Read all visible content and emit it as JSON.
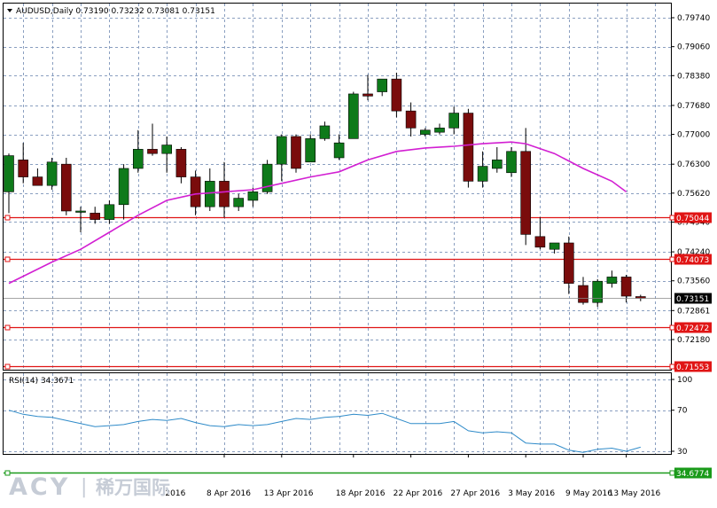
{
  "header": {
    "symbol": "AUDUSD,Daily",
    "ohlc": "0.73190 0.73232 0.73081 0.73151",
    "menu_icon": "triangle-down-icon"
  },
  "watermark": {
    "brand": "ACY",
    "separator": "|",
    "cn": "稀万国际",
    "color": "#c6ccd6"
  },
  "colors": {
    "bull_body": "#0e7a1a",
    "bear_body": "#7a0c0c",
    "ma_line": "#d21fd2",
    "rsi_line": "#2f8bc9",
    "resistance": "#e01515",
    "rsi_level": "#1a9a1a",
    "grid": "#8a9fc0"
  },
  "chart_data": [
    {
      "type": "candlestick",
      "title": "AUDUSD,Daily",
      "y_ticks": [
        "0.79740",
        "0.79060",
        "0.78380",
        "0.77680",
        "0.77000",
        "0.76300",
        "0.75620",
        "0.74940",
        "0.74240",
        "0.73560",
        "0.72861",
        "0.72180"
      ],
      "y_tick_values": [
        0.7974,
        0.7906,
        0.7838,
        0.7768,
        0.77,
        0.763,
        0.7562,
        0.7494,
        0.7424,
        0.7356,
        0.72861,
        0.7218
      ],
      "x_labels": [
        "8 Apr 2016",
        "13 Apr 2016",
        "18 Apr 2016",
        "22 Apr 2016",
        "27 Apr 2016",
        "3 May 2016",
        "9 May 2016",
        "13 May 2016"
      ],
      "x_label_bars": [
        15,
        19,
        24,
        28,
        32,
        36,
        40,
        43
      ],
      "x_label_cut": "2016",
      "x_label_cut_bar": 12,
      "candles": [
        {
          "o": 0.7565,
          "h": 0.7655,
          "l": 0.7515,
          "c": 0.765
        },
        {
          "o": 0.764,
          "h": 0.768,
          "l": 0.7585,
          "c": 0.76
        },
        {
          "o": 0.76,
          "h": 0.762,
          "l": 0.758,
          "c": 0.758
        },
        {
          "o": 0.758,
          "h": 0.7645,
          "l": 0.757,
          "c": 0.7635
        },
        {
          "o": 0.763,
          "h": 0.7645,
          "l": 0.751,
          "c": 0.752
        },
        {
          "o": 0.752,
          "h": 0.753,
          "l": 0.747,
          "c": 0.752
        },
        {
          "o": 0.7515,
          "h": 0.753,
          "l": 0.749,
          "c": 0.75
        },
        {
          "o": 0.75,
          "h": 0.7545,
          "l": 0.749,
          "c": 0.7535
        },
        {
          "o": 0.7535,
          "h": 0.763,
          "l": 0.75,
          "c": 0.762
        },
        {
          "o": 0.762,
          "h": 0.771,
          "l": 0.761,
          "c": 0.7665
        },
        {
          "o": 0.7665,
          "h": 0.7725,
          "l": 0.765,
          "c": 0.7655
        },
        {
          "o": 0.7655,
          "h": 0.7695,
          "l": 0.761,
          "c": 0.7675
        },
        {
          "o": 0.7665,
          "h": 0.767,
          "l": 0.7585,
          "c": 0.76
        },
        {
          "o": 0.76,
          "h": 0.7615,
          "l": 0.751,
          "c": 0.753
        },
        {
          "o": 0.753,
          "h": 0.762,
          "l": 0.752,
          "c": 0.759
        },
        {
          "o": 0.759,
          "h": 0.7635,
          "l": 0.7505,
          "c": 0.753
        },
        {
          "o": 0.753,
          "h": 0.756,
          "l": 0.752,
          "c": 0.755
        },
        {
          "o": 0.7545,
          "h": 0.7575,
          "l": 0.753,
          "c": 0.7565
        },
        {
          "o": 0.7565,
          "h": 0.764,
          "l": 0.756,
          "c": 0.763
        },
        {
          "o": 0.763,
          "h": 0.77,
          "l": 0.759,
          "c": 0.7695
        },
        {
          "o": 0.7695,
          "h": 0.77,
          "l": 0.761,
          "c": 0.762
        },
        {
          "o": 0.7635,
          "h": 0.77,
          "l": 0.7635,
          "c": 0.769
        },
        {
          "o": 0.769,
          "h": 0.773,
          "l": 0.7685,
          "c": 0.772
        },
        {
          "o": 0.7645,
          "h": 0.77,
          "l": 0.764,
          "c": 0.768
        },
        {
          "o": 0.769,
          "h": 0.78,
          "l": 0.769,
          "c": 0.7795
        },
        {
          "o": 0.7795,
          "h": 0.784,
          "l": 0.778,
          "c": 0.779
        },
        {
          "o": 0.78,
          "h": 0.783,
          "l": 0.779,
          "c": 0.783
        },
        {
          "o": 0.783,
          "h": 0.7845,
          "l": 0.774,
          "c": 0.7755
        },
        {
          "o": 0.7755,
          "h": 0.7775,
          "l": 0.7695,
          "c": 0.7715
        },
        {
          "o": 0.77,
          "h": 0.7715,
          "l": 0.7695,
          "c": 0.771
        },
        {
          "o": 0.7705,
          "h": 0.7725,
          "l": 0.77,
          "c": 0.7715
        },
        {
          "o": 0.7715,
          "h": 0.7765,
          "l": 0.77,
          "c": 0.775
        },
        {
          "o": 0.775,
          "h": 0.776,
          "l": 0.7575,
          "c": 0.759
        },
        {
          "o": 0.759,
          "h": 0.766,
          "l": 0.7575,
          "c": 0.7625
        },
        {
          "o": 0.762,
          "h": 0.767,
          "l": 0.761,
          "c": 0.764
        },
        {
          "o": 0.761,
          "h": 0.767,
          "l": 0.76,
          "c": 0.766
        },
        {
          "o": 0.766,
          "h": 0.7715,
          "l": 0.744,
          "c": 0.7465
        },
        {
          "o": 0.746,
          "h": 0.7505,
          "l": 0.743,
          "c": 0.7435
        },
        {
          "o": 0.743,
          "h": 0.7445,
          "l": 0.742,
          "c": 0.7445
        },
        {
          "o": 0.7445,
          "h": 0.746,
          "l": 0.7325,
          "c": 0.735
        },
        {
          "o": 0.7345,
          "h": 0.7365,
          "l": 0.73,
          "c": 0.7305
        },
        {
          "o": 0.7305,
          "h": 0.736,
          "l": 0.7295,
          "c": 0.7355
        },
        {
          "o": 0.735,
          "h": 0.738,
          "l": 0.734,
          "c": 0.7365
        },
        {
          "o": 0.7365,
          "h": 0.737,
          "l": 0.7305,
          "c": 0.732
        },
        {
          "o": 0.7319,
          "h": 0.73232,
          "l": 0.73081,
          "c": 0.73151
        }
      ],
      "moving_average": [
        {
          "i": 0,
          "v": 0.735
        },
        {
          "i": 3,
          "v": 0.74
        },
        {
          "i": 5,
          "v": 0.743
        },
        {
          "i": 7,
          "v": 0.747
        },
        {
          "i": 9,
          "v": 0.751
        },
        {
          "i": 11,
          "v": 0.7545
        },
        {
          "i": 13,
          "v": 0.756
        },
        {
          "i": 15,
          "v": 0.7565
        },
        {
          "i": 17,
          "v": 0.757
        },
        {
          "i": 19,
          "v": 0.7585
        },
        {
          "i": 21,
          "v": 0.76
        },
        {
          "i": 23,
          "v": 0.7612
        },
        {
          "i": 25,
          "v": 0.764
        },
        {
          "i": 27,
          "v": 0.766
        },
        {
          "i": 29,
          "v": 0.7668
        },
        {
          "i": 31,
          "v": 0.7672
        },
        {
          "i": 33,
          "v": 0.7678
        },
        {
          "i": 35,
          "v": 0.7682
        },
        {
          "i": 36,
          "v": 0.7678
        },
        {
          "i": 38,
          "v": 0.7655
        },
        {
          "i": 40,
          "v": 0.762
        },
        {
          "i": 42,
          "v": 0.759
        },
        {
          "i": 43,
          "v": 0.7565
        }
      ],
      "levels": [
        {
          "value": 0.75044,
          "label": "0.75044"
        },
        {
          "value": 0.74073,
          "label": "0.74073"
        },
        {
          "value": 0.72472,
          "label": "0.72472"
        },
        {
          "value": 0.71553,
          "label": "0.71553"
        }
      ],
      "current_price": {
        "value": 0.73151,
        "label": "0.73151"
      }
    },
    {
      "type": "line",
      "title": "RSI(14) 34.3671",
      "y_ticks": [
        "100",
        "70",
        "30"
      ],
      "y_tick_values": [
        100,
        70,
        30
      ],
      "rsi": [
        70,
        66,
        64,
        63,
        60,
        57,
        54,
        55,
        56,
        59,
        61,
        60,
        62,
        58,
        55,
        54,
        56,
        55,
        56,
        59,
        62,
        61,
        63,
        64,
        66,
        65,
        67,
        62,
        57,
        57,
        57,
        59,
        50,
        48,
        49,
        48,
        38,
        37,
        37,
        31,
        29,
        32,
        33,
        30,
        34
      ],
      "level": {
        "value": 34.6774,
        "label": "34.6774"
      }
    }
  ]
}
